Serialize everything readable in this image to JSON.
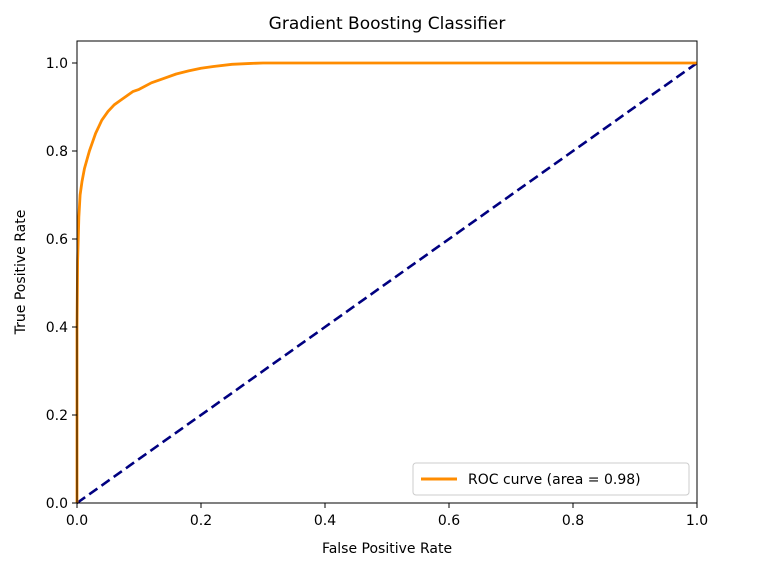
{
  "chart_data": {
    "type": "line",
    "title": "Gradient Boosting Classifier",
    "xlabel": "False Positive Rate",
    "ylabel": "True Positive Rate",
    "xlim": [
      0.0,
      1.0
    ],
    "ylim": [
      0.0,
      1.05
    ],
    "x_ticks": [
      "0.0",
      "0.2",
      "0.4",
      "0.6",
      "0.8",
      "1.0"
    ],
    "y_ticks": [
      "0.0",
      "0.2",
      "0.4",
      "0.6",
      "0.8",
      "1.0"
    ],
    "grid": false,
    "legend_position": "lower right",
    "series": [
      {
        "name": "ROC curve (area = 0.98)",
        "color": "#ff8c00",
        "style": "solid",
        "x": [
          0.0,
          0.0,
          0.001,
          0.002,
          0.003,
          0.005,
          0.008,
          0.012,
          0.016,
          0.02,
          0.025,
          0.03,
          0.035,
          0.04,
          0.05,
          0.06,
          0.07,
          0.08,
          0.09,
          0.1,
          0.12,
          0.14,
          0.16,
          0.18,
          0.2,
          0.22,
          0.25,
          0.28,
          0.3,
          0.35,
          0.4,
          0.5,
          0.6,
          0.7,
          0.8,
          0.9,
          1.0
        ],
        "y": [
          0.0,
          0.4,
          0.55,
          0.6,
          0.65,
          0.7,
          0.73,
          0.76,
          0.78,
          0.8,
          0.82,
          0.84,
          0.855,
          0.87,
          0.89,
          0.905,
          0.915,
          0.925,
          0.935,
          0.94,
          0.955,
          0.965,
          0.975,
          0.982,
          0.988,
          0.992,
          0.997,
          0.999,
          1.0,
          1.0,
          1.0,
          1.0,
          1.0,
          1.0,
          1.0,
          1.0,
          1.0
        ]
      },
      {
        "name": "",
        "color": "#000080",
        "style": "dashed",
        "x": [
          0.0,
          1.0
        ],
        "y": [
          0.0,
          1.0
        ]
      }
    ]
  }
}
